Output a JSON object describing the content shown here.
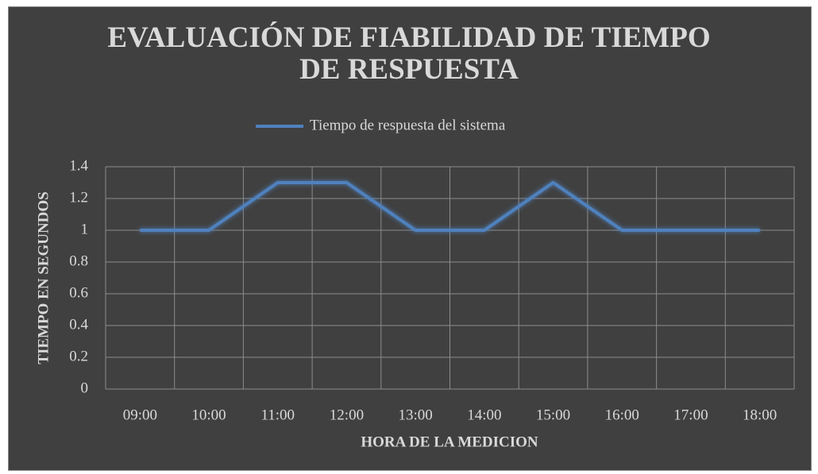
{
  "chart_data": {
    "type": "line",
    "title": "EVALUACIÓN DE FIABILIDAD DE TIEMPO DE RESPUESTA",
    "x_label": "HORA DE LA MEDICION",
    "y_label": "TIEMPO EN SEGUNDOS",
    "categories": [
      "09:00",
      "10:00",
      "11:00",
      "12:00",
      "13:00",
      "14:00",
      "15:00",
      "16:00",
      "17:00",
      "18:00"
    ],
    "series": [
      {
        "name": "Tiempo de respuesta del sistema",
        "color": "#4f81bd",
        "values": [
          1,
          1,
          1.3,
          1.3,
          1,
          1,
          1.3,
          1,
          1,
          1
        ]
      }
    ],
    "ylim": [
      0,
      1.4
    ],
    "yticks": [
      0,
      0.2,
      0.4,
      0.6,
      0.8,
      1,
      1.2,
      1.4
    ],
    "grid": true,
    "legend": "top"
  }
}
